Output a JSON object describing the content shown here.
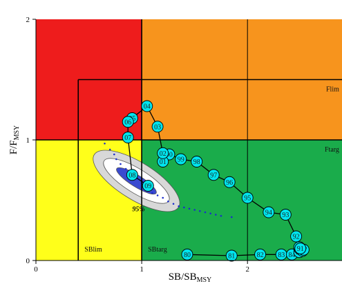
{
  "chart_data": {
    "type": "scatter",
    "xlabel": "SB/SB",
    "xlabel_sub": "MSY",
    "ylabel": "F/F",
    "ylabel_sub": "MSY",
    "xlim": [
      0,
      2.9
    ],
    "ylim": [
      0,
      2
    ],
    "x_ticks": [
      "0",
      "1",
      "2"
    ],
    "y_ticks": [
      "0",
      "1",
      "2"
    ],
    "grid": true,
    "zones": [
      {
        "name": "red",
        "x": [
          0,
          1
        ],
        "y": [
          1,
          2
        ],
        "color": "#ee1c1c"
      },
      {
        "name": "orange",
        "x": [
          1,
          2.9
        ],
        "y": [
          1,
          2
        ],
        "color": "#f7941d"
      },
      {
        "name": "yellow",
        "x": [
          0,
          1
        ],
        "y": [
          0,
          1
        ],
        "color": "#ffff1a"
      },
      {
        "name": "green",
        "x": [
          1,
          2.9
        ],
        "y": [
          0,
          1
        ],
        "color": "#1aac4b"
      }
    ],
    "reference_lines": [
      {
        "label": "Flim",
        "type": "horizontal",
        "value": 1.5,
        "from_x": 0.4
      },
      {
        "label": "Ftarg",
        "type": "horizontal",
        "value": 1.0
      },
      {
        "label": "SBlim",
        "type": "vertical",
        "value": 0.4,
        "to_y": 1.5
      },
      {
        "label": "SBtarg",
        "type": "vertical",
        "value": 1.0
      }
    ],
    "trajectory_years": [
      "80",
      "81",
      "82",
      "83",
      "84",
      "85",
      "86",
      "87",
      "88",
      "89",
      "90",
      "91",
      "92",
      "93",
      "94",
      "95",
      "96",
      "97",
      "98",
      "99",
      "00",
      "01",
      "02",
      "03",
      "04",
      "05",
      "06",
      "07",
      "08",
      "09"
    ],
    "trajectory_x": [
      1.43,
      1.85,
      2.12,
      2.32,
      2.42,
      2.49,
      2.52,
      2.53,
      2.49,
      2.5,
      2.49,
      2.5,
      2.46,
      2.36,
      2.2,
      2.0,
      1.83,
      1.68,
      1.52,
      1.37,
      1.26,
      1.2,
      1.2,
      1.15,
      1.05,
      0.91,
      0.87,
      0.87,
      0.91,
      1.06
    ],
    "trajectory_y": [
      0.05,
      0.04,
      0.05,
      0.05,
      0.05,
      0.07,
      0.08,
      0.09,
      0.1,
      0.1,
      0.11,
      0.1,
      0.2,
      0.38,
      0.4,
      0.52,
      0.65,
      0.71,
      0.82,
      0.84,
      0.88,
      0.82,
      0.89,
      1.11,
      1.28,
      1.18,
      1.15,
      1.02,
      0.71,
      0.62
    ],
    "confidence_label": "95%",
    "confidence_ellipses": [
      {
        "level": "95%",
        "center": [
          0.95,
          0.66
        ],
        "semi_major": 0.47,
        "semi_minor": 0.07,
        "angle_deg": -44,
        "color": "#d8d8d8"
      },
      {
        "level": "inner",
        "center": [
          0.95,
          0.66
        ],
        "semi_major": 0.36,
        "semi_minor": 0.045,
        "angle_deg": -44,
        "color": "#ffffff"
      },
      {
        "level": "core",
        "center": [
          0.95,
          0.66
        ],
        "semi_major": 0.22,
        "semi_minor": 0.022,
        "angle_deg": -44,
        "color": "#3a4ad0"
      }
    ],
    "uncertainty_points_x": [
      0.65,
      0.7,
      0.74,
      0.76,
      0.8,
      0.85,
      0.9,
      0.95,
      1.0,
      1.05,
      1.1,
      1.15,
      1.2,
      1.25,
      1.3,
      1.35,
      1.4,
      1.45,
      1.5,
      1.55,
      1.6,
      1.65,
      1.7,
      1.75,
      1.85
    ],
    "uncertainty_points_y": [
      0.97,
      0.92,
      0.88,
      0.84,
      0.8,
      0.76,
      0.73,
      0.68,
      0.64,
      0.6,
      0.56,
      0.54,
      0.52,
      0.49,
      0.47,
      0.45,
      0.44,
      0.43,
      0.42,
      0.41,
      0.4,
      0.39,
      0.38,
      0.37,
      0.36
    ]
  }
}
